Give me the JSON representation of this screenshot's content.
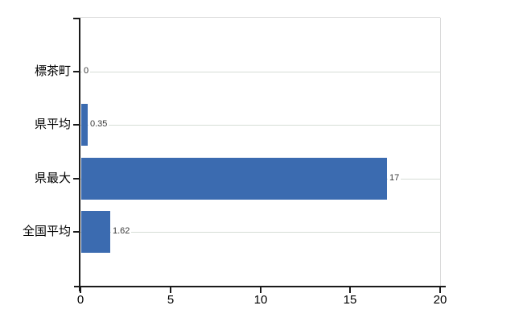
{
  "chart_data": {
    "type": "bar",
    "orientation": "horizontal",
    "title": "",
    "xlabel": "",
    "ylabel": "",
    "categories": [
      "標茶町",
      "県平均",
      "県最大",
      "全国平均"
    ],
    "values": [
      0,
      0.35,
      17,
      1.62
    ],
    "value_labels": [
      "0",
      "0.35",
      "17",
      "1.62"
    ],
    "xlim": [
      0,
      20
    ],
    "xticks": [
      0,
      5,
      10,
      15,
      20
    ],
    "xtick_labels": [
      "0",
      "5",
      "10",
      "15",
      "20"
    ],
    "legend": "none",
    "grid": "horizontal-row-gridlines",
    "colors": {
      "bar": "#3b6bb0",
      "axis": "#1a1a1a",
      "gridline": "#d6ddd6",
      "plot_border": "#d9d9d9",
      "category_label": "#000000",
      "value_label": "#3a3a3a"
    }
  }
}
